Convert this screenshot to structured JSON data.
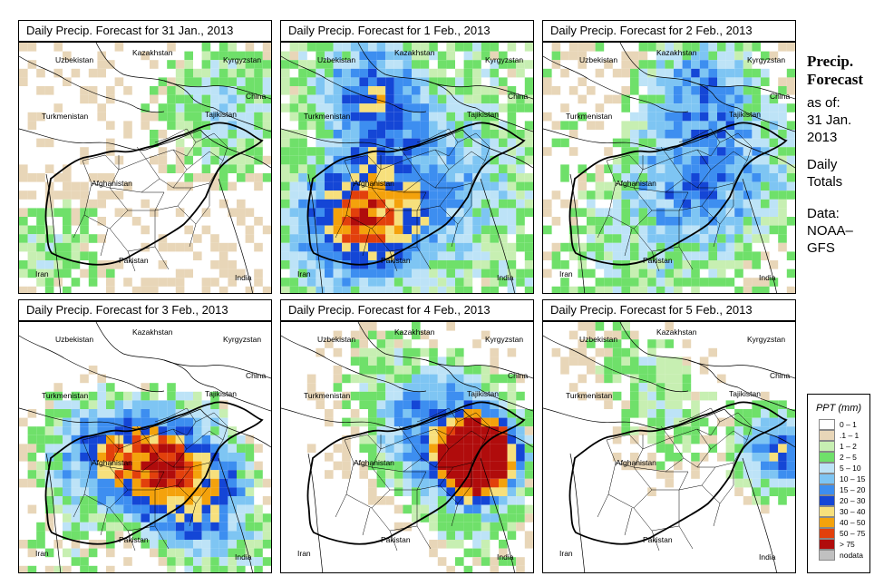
{
  "panels": [
    {
      "title": "Daily Precip. Forecast for  31 Jan., 2013",
      "intensity": "light"
    },
    {
      "title": "Daily Precip. Forecast for  1 Feb., 2013",
      "intensity": "heavy-west"
    },
    {
      "title": "Daily Precip. Forecast for  2 Feb., 2013",
      "intensity": "moderate"
    },
    {
      "title": "Daily Precip. Forecast for  3 Feb., 2013",
      "intensity": "heavy-central"
    },
    {
      "title": "Daily Precip. Forecast for  4 Feb., 2013",
      "intensity": "heavy-east"
    },
    {
      "title": "Daily Precip. Forecast for  5 Feb., 2013",
      "intensity": "light-east"
    }
  ],
  "countries": {
    "uzbekistan": "Uzbekistan",
    "kazakhstan": "Kazakhstan",
    "kyrgyzstan": "Kyrgyzstan",
    "china": "China",
    "turkmenistan": "Turkmenistan",
    "tajikistan": "Tajikistan",
    "afghanistan": "Afghanistan",
    "pakistan": "Pakistan",
    "iran": "Iran",
    "india": "India"
  },
  "side": {
    "title_line1": "Precip.",
    "title_line2": "Forecast",
    "as_of": "as of:",
    "date_line1": "31 Jan.",
    "date_line2": "2013",
    "daily": "Daily",
    "totals": "Totals",
    "data": "Data:",
    "source_line1": "NOAA–",
    "source_line2": "GFS"
  },
  "legend": {
    "title": "PPT (mm)",
    "items": [
      {
        "label": "0 – 1",
        "color": "#ffffff"
      },
      {
        "label": ".1 – 1",
        "color": "#e8d6b8"
      },
      {
        "label": "1 – 2",
        "color": "#c7efb2"
      },
      {
        "label": "2 – 5",
        "color": "#6fe06a"
      },
      {
        "label": "5 – 10",
        "color": "#bde3f7"
      },
      {
        "label": "10 – 15",
        "color": "#7ec5f3"
      },
      {
        "label": "15 – 20",
        "color": "#3d8ef0"
      },
      {
        "label": "20 – 30",
        "color": "#1446d6"
      },
      {
        "label": "30 – 40",
        "color": "#f7e07c"
      },
      {
        "label": "40 – 50",
        "color": "#f4a20c"
      },
      {
        "label": "50 – 75",
        "color": "#e2400c"
      },
      {
        "label": "> 75",
        "color": "#b00c0c"
      },
      {
        "label": "nodata",
        "color": "#c0c0c0"
      }
    ]
  }
}
